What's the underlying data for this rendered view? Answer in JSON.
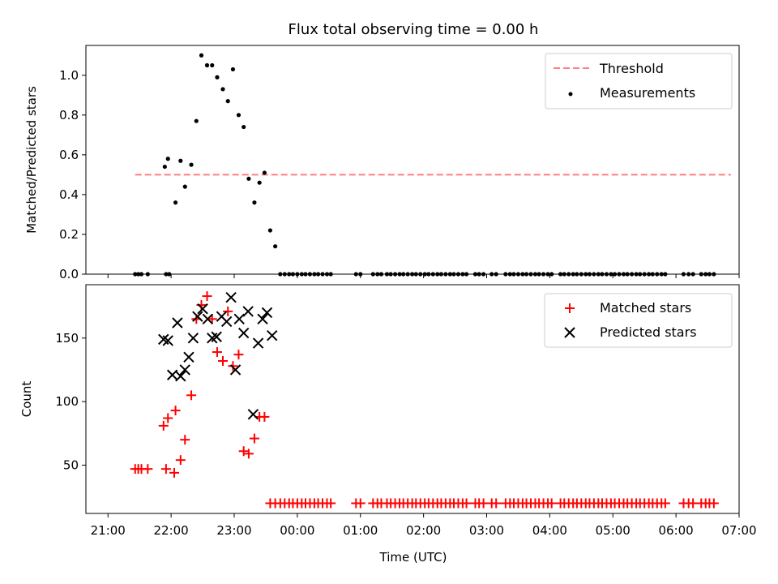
{
  "chart_data": [
    {
      "type": "scatter",
      "title": "Flux total observing time = 0.00 h",
      "xlabel": "",
      "ylabel": "Matched/Predicted stars",
      "ylim": [
        0,
        1.15
      ],
      "yticks": [
        "0.0",
        "0.2",
        "0.4",
        "0.6",
        "0.8",
        "1.0"
      ],
      "threshold": {
        "name": "Threshold",
        "value": 0.5,
        "x_range": [
          21.43,
          30.87
        ],
        "color": "#ff7f7f"
      },
      "series": [
        {
          "name": "Measurements",
          "color": "#000000",
          "x": [
            21.43,
            21.48,
            21.53,
            21.63,
            21.92,
            21.97,
            21.9,
            21.95,
            22.07,
            22.15,
            22.22,
            22.32,
            22.4,
            22.48,
            22.57,
            22.65,
            22.73,
            22.82,
            22.9,
            22.98,
            23.07,
            23.15,
            23.23,
            23.32,
            23.4,
            23.48,
            23.57,
            23.65,
            23.73,
            23.8,
            23.87,
            23.93,
            24.0,
            24.07,
            24.13,
            24.2,
            24.27,
            24.33,
            24.4,
            24.47,
            24.53,
            24.93,
            25.0,
            25.2,
            25.27,
            25.33,
            25.42,
            25.48,
            25.55,
            25.62,
            25.68,
            25.75,
            25.82,
            25.88,
            25.95,
            26.02,
            26.08,
            26.15,
            26.22,
            26.28,
            26.35,
            26.42,
            26.48,
            26.55,
            26.62,
            26.68,
            26.82,
            26.88,
            26.95,
            27.08,
            27.15,
            27.3,
            27.37,
            27.43,
            27.5,
            27.57,
            27.63,
            27.7,
            27.77,
            27.83,
            27.9,
            27.97,
            28.03,
            28.17,
            28.23,
            28.3,
            28.37,
            28.43,
            28.5,
            28.57,
            28.63,
            28.7,
            28.77,
            28.83,
            28.9,
            28.97,
            29.03,
            29.1,
            29.17,
            29.23,
            29.3,
            29.37,
            29.43,
            29.5,
            29.57,
            29.63,
            29.7,
            29.77,
            29.83,
            30.12,
            30.2,
            30.27,
            30.4,
            30.47,
            30.53,
            30.6
          ],
          "y": [
            0,
            0,
            0,
            0,
            0,
            0,
            0.54,
            0.58,
            0.36,
            0.57,
            0.44,
            0.55,
            0.77,
            1.1,
            1.05,
            1.05,
            0.99,
            0.93,
            0.87,
            1.03,
            0.8,
            0.74,
            0.48,
            0.36,
            0.46,
            0.51,
            0.22,
            0.14,
            0,
            0,
            0,
            0,
            0,
            0,
            0,
            0,
            0,
            0,
            0,
            0,
            0,
            0,
            0,
            0,
            0,
            0,
            0,
            0,
            0,
            0,
            0,
            0,
            0,
            0,
            0,
            0,
            0,
            0,
            0,
            0,
            0,
            0,
            0,
            0,
            0,
            0,
            0,
            0,
            0,
            0,
            0,
            0,
            0,
            0,
            0,
            0,
            0,
            0,
            0,
            0,
            0,
            0,
            0,
            0,
            0,
            0,
            0,
            0,
            0,
            0,
            0,
            0,
            0,
            0,
            0,
            0,
            0,
            0,
            0,
            0,
            0,
            0,
            0,
            0,
            0,
            0,
            0,
            0,
            0,
            0,
            0,
            0,
            0,
            0,
            0,
            0
          ]
        }
      ],
      "legend": "top-right"
    },
    {
      "type": "scatter",
      "xlabel": "Time (UTC)",
      "ylabel": "Count",
      "xlim": [
        20.65,
        31.0
      ],
      "ylim": [
        12,
        192
      ],
      "xticks": [
        "21:00",
        "22:00",
        "23:00",
        "00:00",
        "01:00",
        "02:00",
        "03:00",
        "04:00",
        "05:00",
        "06:00",
        "07:00"
      ],
      "yticks": [
        "50",
        "100",
        "150"
      ],
      "series": [
        {
          "name": "Matched stars",
          "color": "#ff0000",
          "x": [
            21.43,
            21.48,
            21.53,
            21.63,
            21.92,
            22.05,
            21.88,
            21.95,
            22.07,
            22.15,
            22.22,
            22.32,
            22.4,
            22.48,
            22.57,
            22.65,
            22.73,
            22.82,
            22.9,
            22.98,
            23.07,
            23.15,
            23.23,
            23.32,
            23.4,
            23.48,
            23.57,
            23.65,
            23.73,
            23.8,
            23.87,
            23.93,
            24.0,
            24.07,
            24.13,
            24.2,
            24.27,
            24.33,
            24.4,
            24.47,
            24.53,
            24.93,
            25.0,
            25.2,
            25.27,
            25.33,
            25.42,
            25.48,
            25.55,
            25.62,
            25.68,
            25.75,
            25.82,
            25.88,
            25.95,
            26.02,
            26.08,
            26.15,
            26.22,
            26.28,
            26.35,
            26.42,
            26.48,
            26.55,
            26.62,
            26.68,
            26.82,
            26.88,
            26.95,
            27.08,
            27.15,
            27.3,
            27.37,
            27.43,
            27.5,
            27.57,
            27.63,
            27.7,
            27.77,
            27.83,
            27.9,
            27.97,
            28.03,
            28.17,
            28.23,
            28.3,
            28.37,
            28.43,
            28.5,
            28.57,
            28.63,
            28.7,
            28.77,
            28.83,
            28.9,
            28.97,
            29.03,
            29.1,
            29.17,
            29.23,
            29.3,
            29.37,
            29.43,
            29.5,
            29.57,
            29.63,
            29.7,
            29.77,
            29.83,
            30.12,
            30.2,
            30.27,
            30.4,
            30.47,
            30.53,
            30.6
          ],
          "y": [
            47,
            47,
            47,
            47,
            47,
            44,
            81,
            87,
            93,
            54,
            70,
            105,
            165,
            176,
            183,
            165,
            139,
            132,
            171,
            128,
            137,
            61,
            59,
            71,
            88,
            88,
            20,
            20,
            20,
            20,
            20,
            20,
            20,
            20,
            20,
            20,
            20,
            20,
            20,
            20,
            20,
            20,
            20,
            20,
            20,
            20,
            20,
            20,
            20,
            20,
            20,
            20,
            20,
            20,
            20,
            20,
            20,
            20,
            20,
            20,
            20,
            20,
            20,
            20,
            20,
            20,
            20,
            20,
            20,
            20,
            20,
            20,
            20,
            20,
            20,
            20,
            20,
            20,
            20,
            20,
            20,
            20,
            20,
            20,
            20,
            20,
            20,
            20,
            20,
            20,
            20,
            20,
            20,
            20,
            20,
            20,
            20,
            20,
            20,
            20,
            20,
            20,
            20,
            20,
            20,
            20,
            20,
            20,
            20,
            20,
            20,
            20,
            20,
            20,
            20,
            20
          ]
        },
        {
          "name": "Predicted stars",
          "color": "#000000",
          "x": [
            21.88,
            21.95,
            22.02,
            22.1,
            22.15,
            22.22,
            22.28,
            22.35,
            22.42,
            22.5,
            22.58,
            22.65,
            22.72,
            22.8,
            22.88,
            22.95,
            23.02,
            23.08,
            23.15,
            23.22,
            23.3,
            23.38,
            23.45,
            23.52,
            23.6
          ],
          "y": [
            149,
            148,
            121,
            162,
            120,
            125,
            135,
            150,
            167,
            173,
            165,
            150,
            151,
            167,
            163,
            182,
            125,
            165,
            154,
            171,
            90,
            146,
            165,
            170,
            152
          ]
        }
      ],
      "legend": "top-right"
    }
  ]
}
